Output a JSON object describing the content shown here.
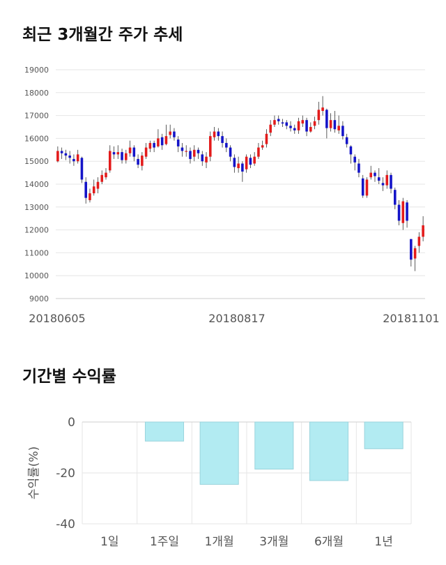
{
  "sections": {
    "price_title": "최근 3개월간 주가 추세",
    "returns_title": "기간별 수익률"
  },
  "chart_data": [
    {
      "type": "candlestick",
      "title": "최근 3개월간 주가 추세",
      "xlabel": "",
      "ylabel": "",
      "ylim": [
        9000,
        19000
      ],
      "yticks": [
        19000,
        18000,
        17000,
        16000,
        15000,
        14000,
        13000,
        12000,
        11000,
        10000,
        9000
      ],
      "xticks": [
        "20180605",
        "20180817",
        "20181101"
      ],
      "grid": true,
      "colors": {
        "up": "#e31b1b",
        "down": "#1414c8",
        "wick": "#333333"
      },
      "candles": [
        [
          15000,
          15450,
          15650,
          14950
        ],
        [
          15450,
          15350,
          15600,
          15100
        ],
        [
          15350,
          15250,
          15500,
          15050
        ],
        [
          15250,
          15150,
          15450,
          14900
        ],
        [
          15100,
          15000,
          15300,
          14800
        ],
        [
          15000,
          15300,
          15500,
          14900
        ],
        [
          15150,
          14200,
          15200,
          14050
        ],
        [
          14100,
          13400,
          14300,
          13150
        ],
        [
          13300,
          13600,
          13800,
          13200
        ],
        [
          13600,
          13900,
          14200,
          13500
        ],
        [
          13800,
          14100,
          14300,
          13600
        ],
        [
          14100,
          14400,
          14600,
          14000
        ],
        [
          14300,
          14500,
          14700,
          14200
        ],
        [
          14600,
          15450,
          15700,
          14500
        ],
        [
          15400,
          15300,
          15650,
          15100
        ],
        [
          15300,
          15400,
          15700,
          15100
        ],
        [
          15400,
          15050,
          15550,
          14900
        ],
        [
          15050,
          15350,
          15500,
          14900
        ],
        [
          15350,
          15600,
          15900,
          15200
        ],
        [
          15600,
          15200,
          15700,
          15000
        ],
        [
          15100,
          14850,
          15300,
          14700
        ],
        [
          14800,
          15250,
          15400,
          14600
        ],
        [
          15200,
          15600,
          15800,
          15100
        ],
        [
          15550,
          15800,
          15900,
          15400
        ],
        [
          15800,
          15600,
          15900,
          15400
        ],
        [
          15650,
          16000,
          16400,
          15600
        ],
        [
          16050,
          15700,
          16200,
          15500
        ],
        [
          15750,
          16100,
          16600,
          15700
        ],
        [
          16150,
          16300,
          16600,
          16000
        ],
        [
          16300,
          16050,
          16450,
          15900
        ],
        [
          15950,
          15650,
          16100,
          15400
        ],
        [
          15600,
          15450,
          15800,
          15200
        ],
        [
          15450,
          15450,
          15700,
          15200
        ],
        [
          15450,
          15100,
          15600,
          14900
        ],
        [
          15200,
          15500,
          15700,
          15000
        ],
        [
          15500,
          15350,
          15600,
          15100
        ],
        [
          15300,
          15000,
          15450,
          14800
        ],
        [
          14950,
          15200,
          15400,
          14700
        ],
        [
          15200,
          16100,
          16300,
          15000
        ],
        [
          16050,
          16300,
          16500,
          15900
        ],
        [
          16300,
          16100,
          16450,
          15900
        ],
        [
          16100,
          15800,
          16300,
          15600
        ],
        [
          15800,
          15600,
          16000,
          15400
        ],
        [
          15600,
          15200,
          15700,
          15000
        ],
        [
          15150,
          14750,
          15300,
          14500
        ],
        [
          14700,
          14900,
          15200,
          14500
        ],
        [
          14900,
          14550,
          15000,
          14100
        ],
        [
          14650,
          15200,
          15300,
          14500
        ],
        [
          15150,
          14850,
          15300,
          14700
        ],
        [
          14900,
          15200,
          15400,
          14800
        ],
        [
          15200,
          15600,
          15800,
          15100
        ],
        [
          15600,
          15700,
          15900,
          15500
        ],
        [
          15750,
          16200,
          16400,
          15600
        ],
        [
          16250,
          16600,
          16800,
          16100
        ],
        [
          16600,
          16800,
          17000,
          16500
        ],
        [
          16850,
          16750,
          17000,
          16600
        ],
        [
          16700,
          16650,
          16850,
          16500
        ],
        [
          16700,
          16550,
          16800,
          16400
        ],
        [
          16550,
          16450,
          16750,
          16300
        ],
        [
          16450,
          16350,
          16600,
          16200
        ],
        [
          16350,
          16750,
          16900,
          16200
        ],
        [
          16650,
          16800,
          17000,
          16500
        ],
        [
          16800,
          16300,
          16900,
          16100
        ],
        [
          16300,
          16500,
          16700,
          16250
        ],
        [
          16550,
          16750,
          16950,
          16400
        ],
        [
          16800,
          17250,
          17600,
          16600
        ],
        [
          17200,
          17350,
          17850,
          17000
        ],
        [
          17250,
          16450,
          17300,
          16000
        ],
        [
          16450,
          16800,
          17100,
          16300
        ],
        [
          16800,
          16400,
          17200,
          16250
        ],
        [
          16350,
          16550,
          17000,
          16200
        ],
        [
          16550,
          16100,
          16750,
          15950
        ],
        [
          16050,
          15750,
          16200,
          15600
        ],
        [
          15650,
          15300,
          15700,
          14900
        ],
        [
          15200,
          14950,
          15300,
          14600
        ],
        [
          14900,
          14500,
          15100,
          14300
        ],
        [
          14250,
          13500,
          14400,
          13400
        ],
        [
          13500,
          14200,
          14300,
          13400
        ],
        [
          14300,
          14500,
          14800,
          14200
        ],
        [
          14500,
          14350,
          14600,
          14100
        ],
        [
          14300,
          14150,
          14700,
          14000
        ],
        [
          14050,
          13950,
          14300,
          13700
        ],
        [
          13950,
          14400,
          14600,
          13800
        ],
        [
          14400,
          13800,
          14500,
          13600
        ],
        [
          13750,
          13100,
          13850,
          12900
        ],
        [
          13100,
          12400,
          13300,
          12200
        ],
        [
          12300,
          13250,
          13400,
          12000
        ],
        [
          13200,
          12400,
          13300,
          12100
        ],
        [
          11600,
          10700,
          11600,
          10400
        ],
        [
          10750,
          11200,
          11300,
          10200
        ],
        [
          11300,
          11700,
          11900,
          11000
        ],
        [
          11700,
          12200,
          12600,
          11500
        ]
      ]
    },
    {
      "type": "bar",
      "title": "기간별 수익률",
      "xlabel": "",
      "ylabel": "수익률(%)",
      "categories": [
        "1일",
        "1주일",
        "1개월",
        "3개월",
        "6개월",
        "1년"
      ],
      "values": [
        0,
        -7.5,
        -24.5,
        -18.5,
        -23,
        -10.5
      ],
      "ylim": [
        -40,
        0
      ],
      "yticks": [
        0,
        -20,
        -40
      ],
      "grid": true,
      "colors": {
        "bar_fill": "#b2ebf2",
        "bar_stroke": "#9ad3dc"
      }
    }
  ]
}
